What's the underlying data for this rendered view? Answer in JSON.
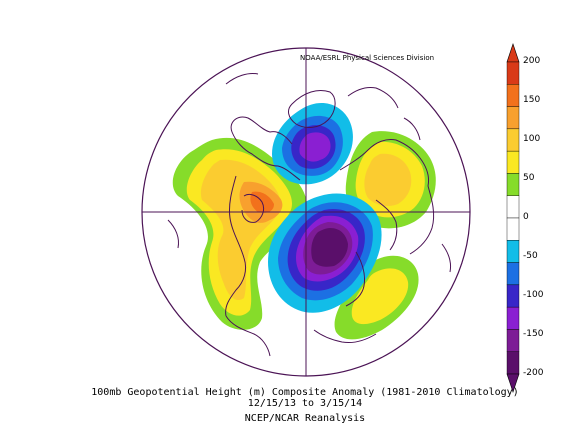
{
  "credit": "NOAA/ESRL Physical Sciences Division",
  "caption": {
    "line1": "100mb Geopotential Height (m) Composite Anomaly (1981-2010 Climatology)",
    "line2": "12/15/13  to 3/15/14",
    "line3": "NCEP/NCAR Reanalysis"
  },
  "colorbar": {
    "ticks": [
      "200",
      "150",
      "100",
      "50",
      "0",
      "-50",
      "-100",
      "-150",
      "-200"
    ],
    "colors": [
      "#d93a18",
      "#f2711c",
      "#f8a02e",
      "#fbcc30",
      "#fae822",
      "#86dc2a",
      "#ffffff",
      "#ffffff",
      "#12bde8",
      "#1c70e3",
      "#3826c8",
      "#8a1fd2",
      "#7d1c96",
      "#5a0f6a"
    ]
  },
  "map": {
    "projection": "north-polar-stereographic",
    "coastline_color": "#4b1355",
    "grid_color": "#4b1355"
  }
}
